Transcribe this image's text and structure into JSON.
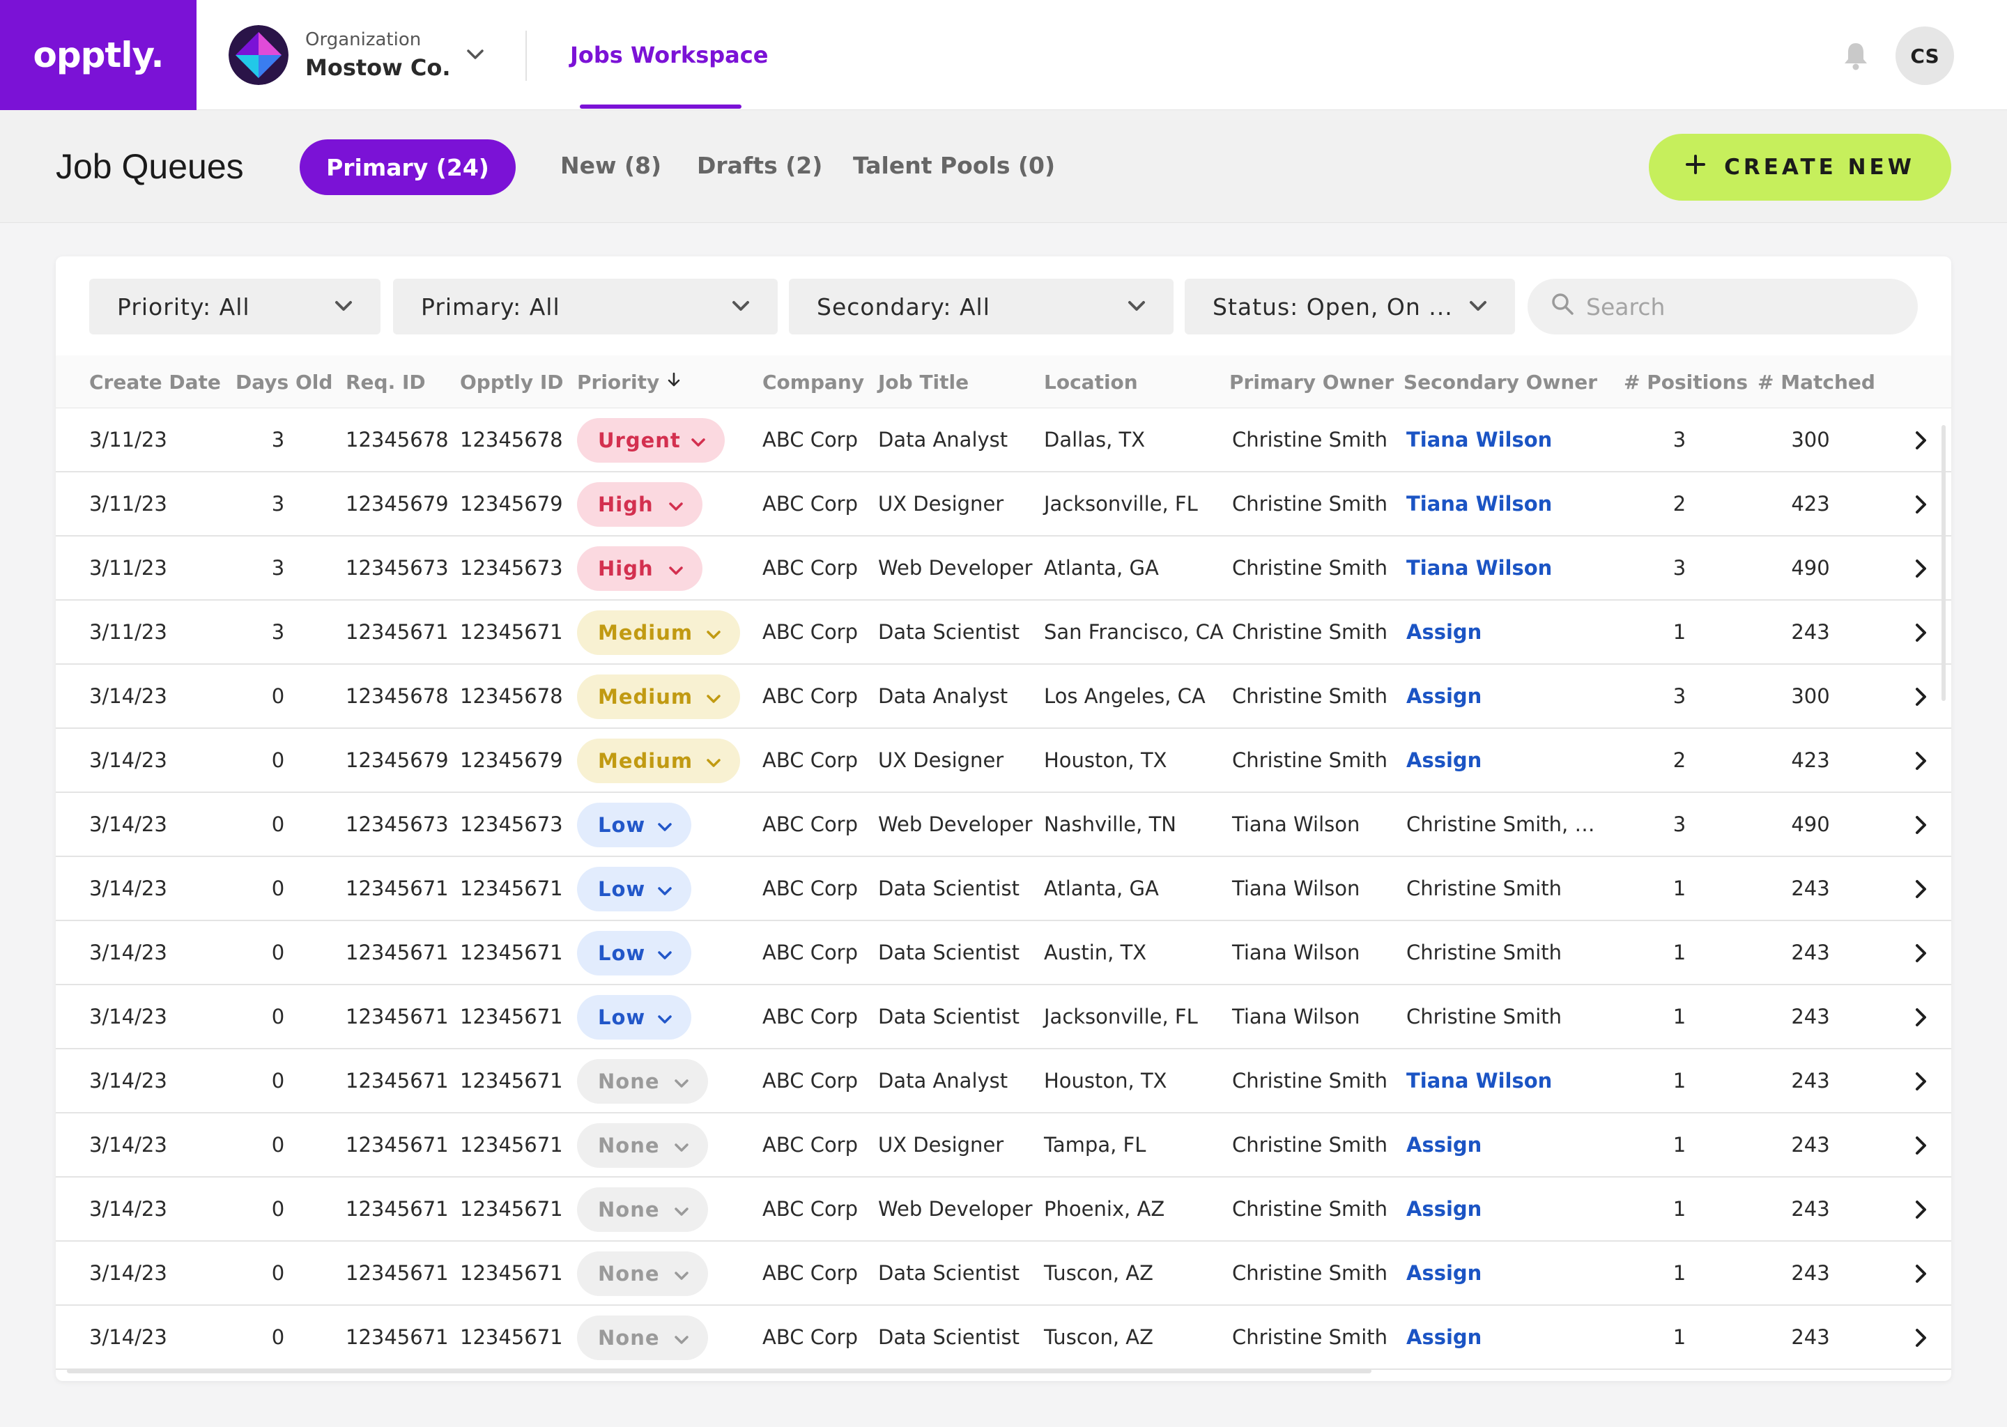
{
  "brand": {
    "logo_text": "opptly.",
    "accent": "#7b12d6"
  },
  "org": {
    "label": "Organization",
    "name": "Mostow Co."
  },
  "nav": {
    "workspace": "Jobs Workspace"
  },
  "user": {
    "initials": "CS"
  },
  "page": {
    "title": "Job Queues",
    "tabs": [
      {
        "label": "Primary (24)",
        "active": true
      },
      {
        "label": "New (8)"
      },
      {
        "label": "Drafts (2)"
      },
      {
        "label": "Talent Pools (0)"
      }
    ],
    "create_label": "CREATE NEW"
  },
  "filters": {
    "priority": "Priority: All",
    "primary": "Primary: All",
    "secondary": "Secondary: All",
    "status": "Status: Open, On ...",
    "search_placeholder": "Search"
  },
  "columns": [
    "Create Date",
    "Days Old",
    "Req. ID",
    "Opptly ID",
    "Priority",
    "Company",
    "Job Title",
    "Location",
    "Primary Owner",
    "Secondary Owner",
    "# Positions",
    "# Matched"
  ],
  "rows": [
    {
      "date": "3/11/23",
      "days": "3",
      "req": "12345678",
      "oid": "12345678",
      "priority": "Urgent",
      "level": "urgent",
      "company": "ABC Corp",
      "title": "Data Analyst",
      "location": "Dallas, TX",
      "primary": "Christine Smith",
      "secondary": "Tiana Wilson",
      "sec_link": true,
      "positions": "3",
      "matched": "300"
    },
    {
      "date": "3/11/23",
      "days": "3",
      "req": "12345679",
      "oid": "12345679",
      "priority": "High",
      "level": "high",
      "company": "ABC Corp",
      "title": "UX Designer",
      "location": "Jacksonville, FL",
      "primary": "Christine Smith",
      "secondary": "Tiana Wilson",
      "sec_link": true,
      "positions": "2",
      "matched": "423"
    },
    {
      "date": "3/11/23",
      "days": "3",
      "req": "12345673",
      "oid": "12345673",
      "priority": "High",
      "level": "high",
      "company": "ABC Corp",
      "title": "Web Developer",
      "location": "Atlanta, GA",
      "primary": "Christine Smith",
      "secondary": "Tiana Wilson",
      "sec_link": true,
      "positions": "3",
      "matched": "490"
    },
    {
      "date": "3/11/23",
      "days": "3",
      "req": "12345671",
      "oid": "12345671",
      "priority": "Medium",
      "level": "medium",
      "company": "ABC Corp",
      "title": "Data Scientist",
      "location": "San Francisco, CA",
      "primary": "Christine Smith",
      "secondary": "Assign",
      "sec_link": true,
      "positions": "1",
      "matched": "243"
    },
    {
      "date": "3/14/23",
      "days": "0",
      "req": "12345678",
      "oid": "12345678",
      "priority": "Medium",
      "level": "medium",
      "company": "ABC Corp",
      "title": "Data Analyst",
      "location": "Los Angeles, CA",
      "primary": "Christine Smith",
      "secondary": "Assign",
      "sec_link": true,
      "positions": "3",
      "matched": "300"
    },
    {
      "date": "3/14/23",
      "days": "0",
      "req": "12345679",
      "oid": "12345679",
      "priority": "Medium",
      "level": "medium",
      "company": "ABC Corp",
      "title": "UX Designer",
      "location": "Houston, TX",
      "primary": "Christine Smith",
      "secondary": "Assign",
      "sec_link": true,
      "positions": "2",
      "matched": "423"
    },
    {
      "date": "3/14/23",
      "days": "0",
      "req": "12345673",
      "oid": "12345673",
      "priority": "Low",
      "level": "low",
      "company": "ABC Corp",
      "title": "Web Developer",
      "location": "Nashville, TN",
      "primary": "Tiana Wilson",
      "secondary": "Christine Smith, Ric...",
      "sec_link": false,
      "positions": "3",
      "matched": "490"
    },
    {
      "date": "3/14/23",
      "days": "0",
      "req": "12345671",
      "oid": "12345671",
      "priority": "Low",
      "level": "low",
      "company": "ABC Corp",
      "title": "Data Scientist",
      "location": "Atlanta, GA",
      "primary": "Tiana Wilson",
      "secondary": "Christine Smith",
      "sec_link": false,
      "positions": "1",
      "matched": "243"
    },
    {
      "date": "3/14/23",
      "days": "0",
      "req": "12345671",
      "oid": "12345671",
      "priority": "Low",
      "level": "low",
      "company": "ABC Corp",
      "title": "Data Scientist",
      "location": "Austin, TX",
      "primary": "Tiana Wilson",
      "secondary": "Christine Smith",
      "sec_link": false,
      "positions": "1",
      "matched": "243"
    },
    {
      "date": "3/14/23",
      "days": "0",
      "req": "12345671",
      "oid": "12345671",
      "priority": "Low",
      "level": "low",
      "company": "ABC Corp",
      "title": "Data Scientist",
      "location": "Jacksonville, FL",
      "primary": "Tiana Wilson",
      "secondary": "Christine Smith",
      "sec_link": false,
      "positions": "1",
      "matched": "243"
    },
    {
      "date": "3/14/23",
      "days": "0",
      "req": "12345671",
      "oid": "12345671",
      "priority": "None",
      "level": "none",
      "company": "ABC Corp",
      "title": "Data Analyst",
      "location": "Houston, TX",
      "primary": "Christine Smith",
      "secondary": "Tiana Wilson",
      "sec_link": true,
      "positions": "1",
      "matched": "243"
    },
    {
      "date": "3/14/23",
      "days": "0",
      "req": "12345671",
      "oid": "12345671",
      "priority": "None",
      "level": "none",
      "company": "ABC Corp",
      "title": "UX Designer",
      "location": "Tampa, FL",
      "primary": "Christine Smith",
      "secondary": "Assign",
      "sec_link": true,
      "positions": "1",
      "matched": "243"
    },
    {
      "date": "3/14/23",
      "days": "0",
      "req": "12345671",
      "oid": "12345671",
      "priority": "None",
      "level": "none",
      "company": "ABC Corp",
      "title": "Web Developer",
      "location": "Phoenix, AZ",
      "primary": "Christine Smith",
      "secondary": "Assign",
      "sec_link": true,
      "positions": "1",
      "matched": "243"
    },
    {
      "date": "3/14/23",
      "days": "0",
      "req": "12345671",
      "oid": "12345671",
      "priority": "None",
      "level": "none",
      "company": "ABC Corp",
      "title": "Data Scientist",
      "location": "Tuscon, AZ",
      "primary": "Christine Smith",
      "secondary": "Assign",
      "sec_link": true,
      "positions": "1",
      "matched": "243"
    },
    {
      "date": "3/14/23",
      "days": "0",
      "req": "12345671",
      "oid": "12345671",
      "priority": "None",
      "level": "none",
      "company": "ABC Corp",
      "title": "Data Scientist",
      "location": "Tuscon, AZ",
      "primary": "Christine Smith",
      "secondary": "Assign",
      "sec_link": true,
      "positions": "1",
      "matched": "243"
    }
  ]
}
